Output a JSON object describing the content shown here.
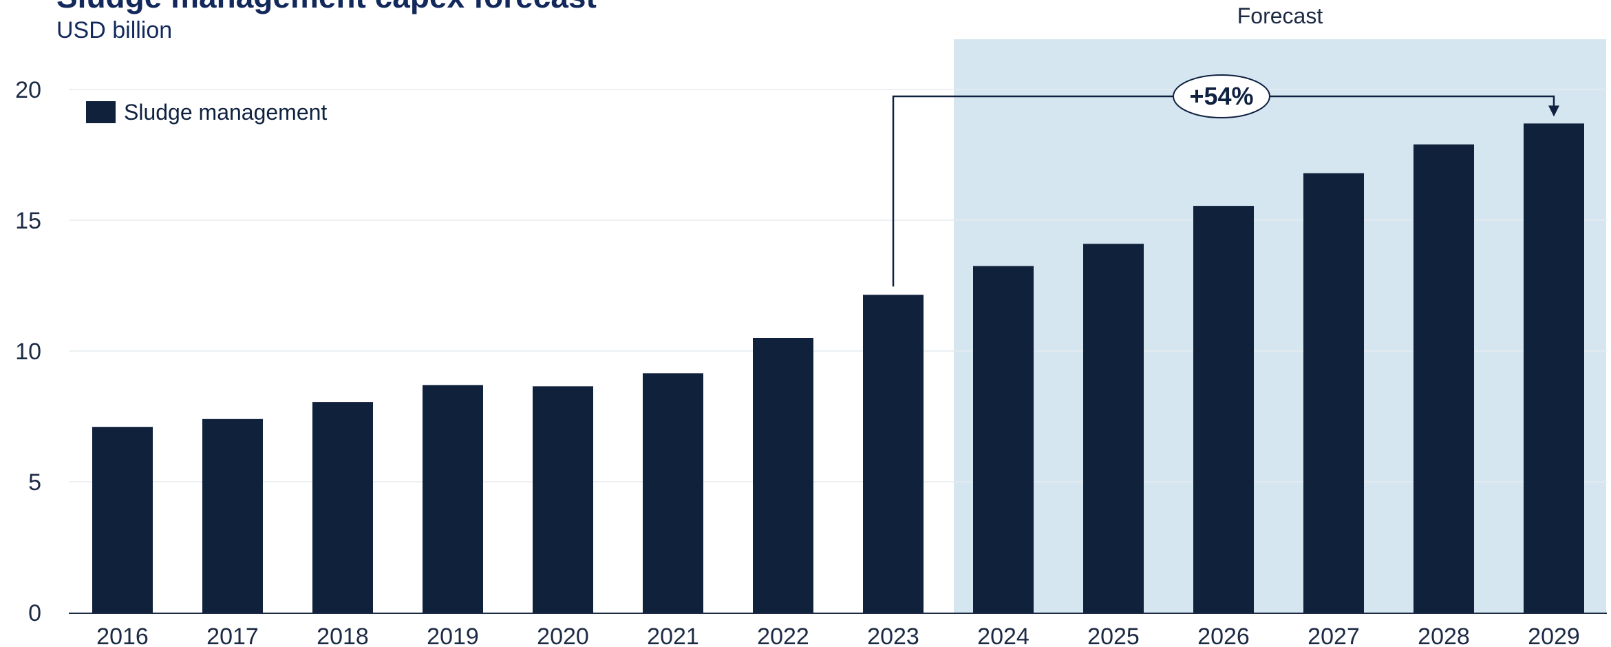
{
  "chart_data": {
    "type": "bar",
    "title": "Sludge management capex forecast",
    "subtitle": "USD billion",
    "categories": [
      "2016",
      "2017",
      "2018",
      "2019",
      "2020",
      "2021",
      "2022",
      "2023",
      "2024",
      "2025",
      "2026",
      "2027",
      "2028",
      "2029"
    ],
    "series": [
      {
        "name": "Sludge management",
        "values": [
          7.1,
          7.4,
          8.05,
          8.7,
          8.65,
          9.15,
          10.5,
          12.15,
          13.25,
          14.1,
          15.55,
          16.8,
          17.9,
          18.7
        ],
        "color": "#10213b"
      }
    ],
    "ylim": [
      0,
      20
    ],
    "yticks": [
      0,
      5,
      10,
      15,
      20
    ],
    "grid": true,
    "legend_position": "top-left",
    "forecast_region": {
      "label": "Forecast",
      "start_category": "2024",
      "end_category": "2029",
      "color": "#d6e6f1"
    },
    "annotation": {
      "text": "+54%",
      "from_category": "2023",
      "to_category": "2029"
    }
  }
}
